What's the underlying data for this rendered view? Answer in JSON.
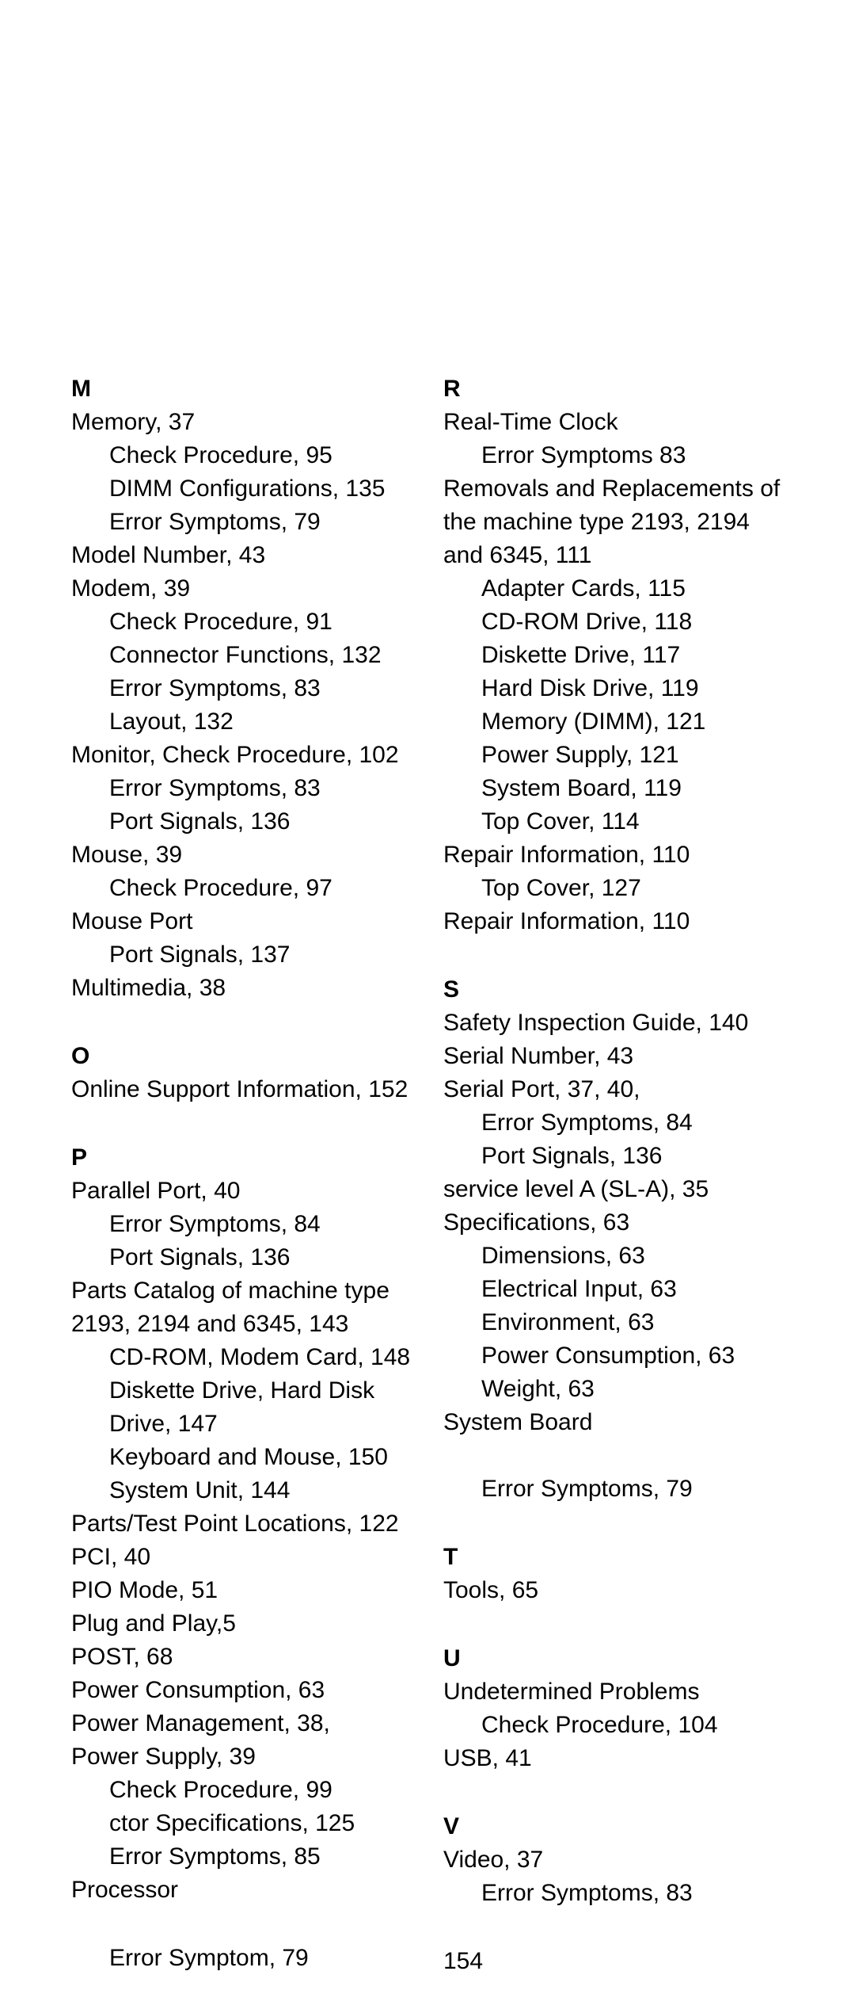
{
  "page_number": "154",
  "colors": {
    "text": "#000000",
    "background": "#ffffff"
  },
  "typography": {
    "family": "Arial",
    "size_pt": 22,
    "line_height": 1.4,
    "header_weight": 700
  },
  "sections": [
    {
      "header": "M",
      "lines": [
        {
          "text": "Memory, 37",
          "sub": false
        },
        {
          "text": "Check Procedure, 95",
          "sub": true
        },
        {
          "text": "DIMM Configurations, 135",
          "sub": true
        },
        {
          "text": "Error Symptoms, 79",
          "sub": true
        },
        {
          "text": "Model Number, 43",
          "sub": false
        },
        {
          "text": "Modem, 39",
          "sub": false
        },
        {
          "text": "Check Procedure, 91",
          "sub": true
        },
        {
          "text": "Connector Functions, 132",
          "sub": true
        },
        {
          "text": "Error Symptoms, 83",
          "sub": true
        },
        {
          "text": "Layout, 132",
          "sub": true
        },
        {
          "text": "Monitor, Check Procedure, 102",
          "sub": false
        },
        {
          "text": "Error Symptoms, 83",
          "sub": true
        },
        {
          "text": "Port Signals, 136",
          "sub": true
        },
        {
          "text": "Mouse, 39",
          "sub": false
        },
        {
          "text": "Check Procedure, 97",
          "sub": true
        },
        {
          "text": "Mouse Port",
          "sub": false
        },
        {
          "text": "Port Signals, 137",
          "sub": true
        },
        {
          "text": "Multimedia, 38",
          "sub": false
        }
      ]
    },
    {
      "header": "O",
      "lines": [
        {
          "text": "Online Support Information, 152",
          "sub": false
        }
      ]
    },
    {
      "header": "P",
      "lines": [
        {
          "text": "Parallel Port, 40",
          "sub": false
        },
        {
          "text": "Error Symptoms, 84",
          "sub": true
        },
        {
          "text": "Port Signals, 136",
          "sub": true
        },
        {
          "text": "Parts Catalog of machine type 2193, 2194 and 6345, 143",
          "sub": false
        },
        {
          "text": "CD-ROM, Modem Card, 148",
          "sub": true
        },
        {
          "text": "Diskette Drive, Hard Disk Drive, 147",
          "sub": true
        },
        {
          "text": "Keyboard and Mouse, 150",
          "sub": true
        },
        {
          "text": "System Unit, 144",
          "sub": true
        },
        {
          "text": "Parts/Test Point Locations, 122",
          "sub": false
        },
        {
          "text": "PCI, 40",
          "sub": false
        },
        {
          "text": "PIO Mode, 51",
          "sub": false
        },
        {
          "text": "Plug and Play,5",
          "sub": false
        },
        {
          "text": "POST, 68",
          "sub": false
        },
        {
          "text": "Power Consumption, 63",
          "sub": false
        },
        {
          "text": "Power Management, 38,",
          "sub": false
        },
        {
          "text": "Power Supply, 39",
          "sub": false
        },
        {
          "text": "Check Procedure, 99",
          "sub": true
        },
        {
          "text": "ctor Specifications, 125",
          "sub": true
        },
        {
          "text": "Error Symptoms, 85",
          "sub": true
        },
        {
          "text": "Processor",
          "sub": false
        }
      ]
    },
    {
      "header": "",
      "lines": [
        {
          "text": "Error Symptom, 79",
          "sub": true
        }
      ]
    },
    {
      "header": "R",
      "lines": [
        {
          "text": "Real-Time Clock",
          "sub": false
        },
        {
          "text": "Error Symptoms 83",
          "sub": true
        },
        {
          "text": "Removals and Replacements of the machine type 2193, 2194 and 6345, 111",
          "sub": false
        },
        {
          "text": "Adapter Cards, 115",
          "sub": true
        },
        {
          "text": "CD-ROM Drive, 118",
          "sub": true
        },
        {
          "text": "Diskette Drive, 117",
          "sub": true
        },
        {
          "text": "Hard Disk Drive, 119",
          "sub": true
        },
        {
          "text": "Memory (DIMM), 121",
          "sub": true
        },
        {
          "text": "Power Supply, 121",
          "sub": true
        },
        {
          "text": "System Board, 119",
          "sub": true
        },
        {
          "text": "Top Cover, 114",
          "sub": true
        },
        {
          "text": "Repair Information, 110",
          "sub": false
        },
        {
          "text": "Top Cover, 127",
          "sub": true
        },
        {
          "text": " Repair Information, 110",
          "sub": false
        }
      ]
    },
    {
      "header": "S",
      "lines": [
        {
          "text": "Safety Inspection Guide, 140",
          "sub": false
        },
        {
          "text": "Serial Number, 43",
          "sub": false
        },
        {
          "text": "Serial Port, 37, 40,",
          "sub": false
        },
        {
          "text": "Error Symptoms, 84",
          "sub": true
        },
        {
          "text": "Port Signals, 136",
          "sub": true
        },
        {
          "text": "service level A (SL-A), 35",
          "sub": false
        },
        {
          "text": "Specifications, 63",
          "sub": false
        },
        {
          "text": "Dimensions, 63",
          "sub": true
        },
        {
          "text": "Electrical Input, 63",
          "sub": true
        },
        {
          "text": "Environment, 63",
          "sub": true
        },
        {
          "text": "Power Consumption, 63",
          "sub": true
        },
        {
          "text": "Weight, 63",
          "sub": true
        },
        {
          "text": "System Board",
          "sub": false
        },
        {
          "text": " ",
          "sub": false
        },
        {
          "text": "Error Symptoms, 79",
          "sub": true
        }
      ]
    },
    {
      "header": "T",
      "lines": [
        {
          "text": "Tools, 65",
          "sub": false
        }
      ]
    },
    {
      "header": "U",
      "lines": [
        {
          "text": "Undetermined Problems",
          "sub": false
        },
        {
          "text": "Check Procedure, 104",
          "sub": true
        },
        {
          "text": "USB, 41",
          "sub": false
        }
      ]
    },
    {
      "header": "V",
      "lines": [
        {
          "text": "Video, 37",
          "sub": false
        },
        {
          "text": "Error Symptoms, 83",
          "sub": true
        }
      ]
    }
  ]
}
